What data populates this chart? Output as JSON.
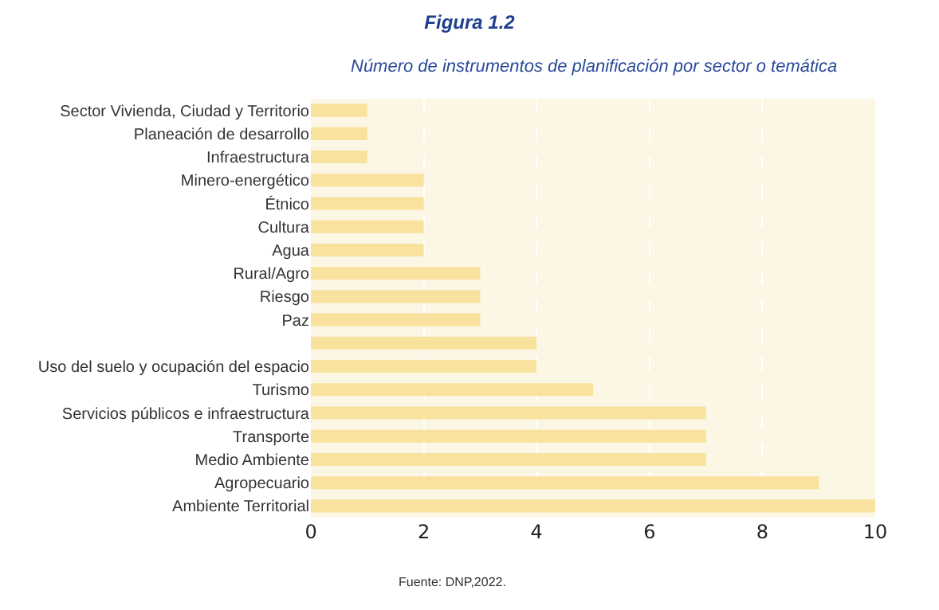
{
  "chart_data": {
    "type": "bar",
    "orientation": "horizontal",
    "title": "Figura 1.2",
    "subtitle": "Número de instrumentos de planificación por sector o temática",
    "categories": [
      "Sector Vivienda, Ciudad y Territorio",
      "Planeación de desarrollo",
      "Infraestructura",
      "Minero-energético",
      "Étnico",
      "Cultura",
      "Agua",
      "Rural/Agro",
      "Riesgo",
      "Paz",
      null,
      "Uso del suelo y ocupación del espacio",
      "Turismo",
      "Servicios públicos e infraestructura",
      "Transporte",
      "Medio Ambiente",
      "Agropecuario",
      "Ambiente Territorial"
    ],
    "values": [
      1,
      1,
      1,
      2,
      2,
      2,
      2,
      3,
      3,
      3,
      4,
      4,
      5,
      7,
      7,
      7,
      9,
      10
    ],
    "color": "#f8e29d",
    "xlim": [
      0,
      10
    ],
    "xticks": [
      0,
      2,
      4,
      6,
      8,
      10
    ],
    "grid": "x",
    "annotations": [
      "Fuente: DNP,2022."
    ]
  }
}
